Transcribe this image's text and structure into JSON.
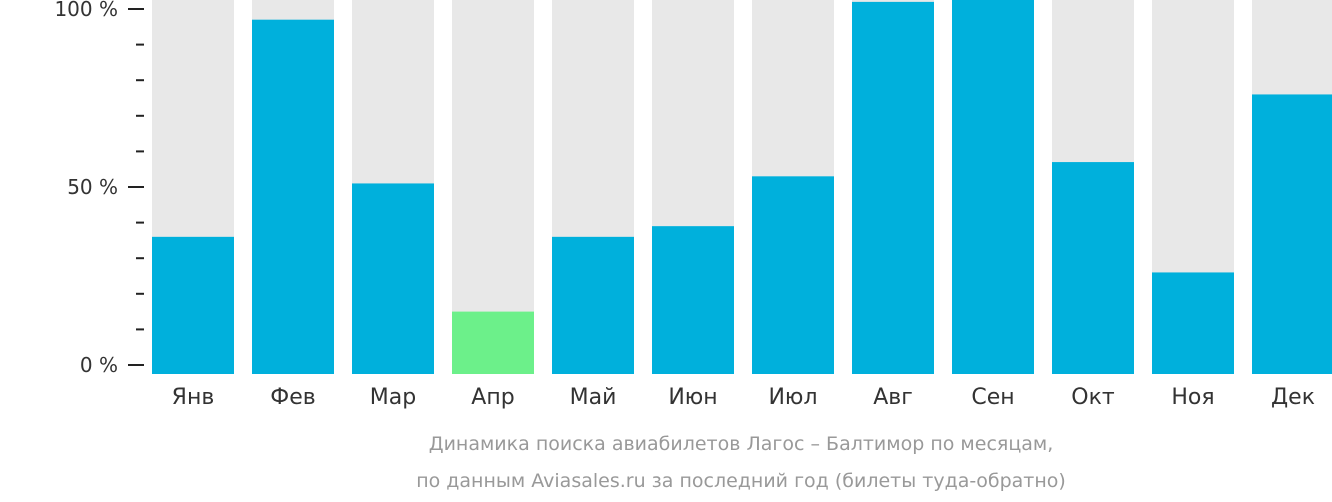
{
  "chart_data": {
    "type": "bar",
    "title": "",
    "caption_line1": "Динамика поиска авиабилетов Лагос – Балтимор по месяцам,",
    "caption_line2": "по данным Aviasales.ru за последний год (билеты туда-обратно)",
    "categories": [
      "Янв",
      "Фев",
      "Мар",
      "Апр",
      "Май",
      "Июн",
      "Июл",
      "Авг",
      "Сен",
      "Окт",
      "Ноя",
      "Дек"
    ],
    "values": [
      36,
      97,
      51,
      15,
      36,
      39,
      53,
      102,
      103,
      57,
      26,
      76
    ],
    "highlight_index": 3,
    "ylim": [
      0,
      100
    ],
    "yticks": [
      {
        "value": 0,
        "label": "0 %"
      },
      {
        "value": 50,
        "label": "50 %"
      },
      {
        "value": 100,
        "label": "100 %"
      }
    ],
    "minor_tick_step": 10,
    "colors": {
      "bar": "#00b0dc",
      "highlight": "#6cf08a",
      "background_bar": "#e8e8e8"
    },
    "xlabel": "",
    "ylabel": ""
  }
}
